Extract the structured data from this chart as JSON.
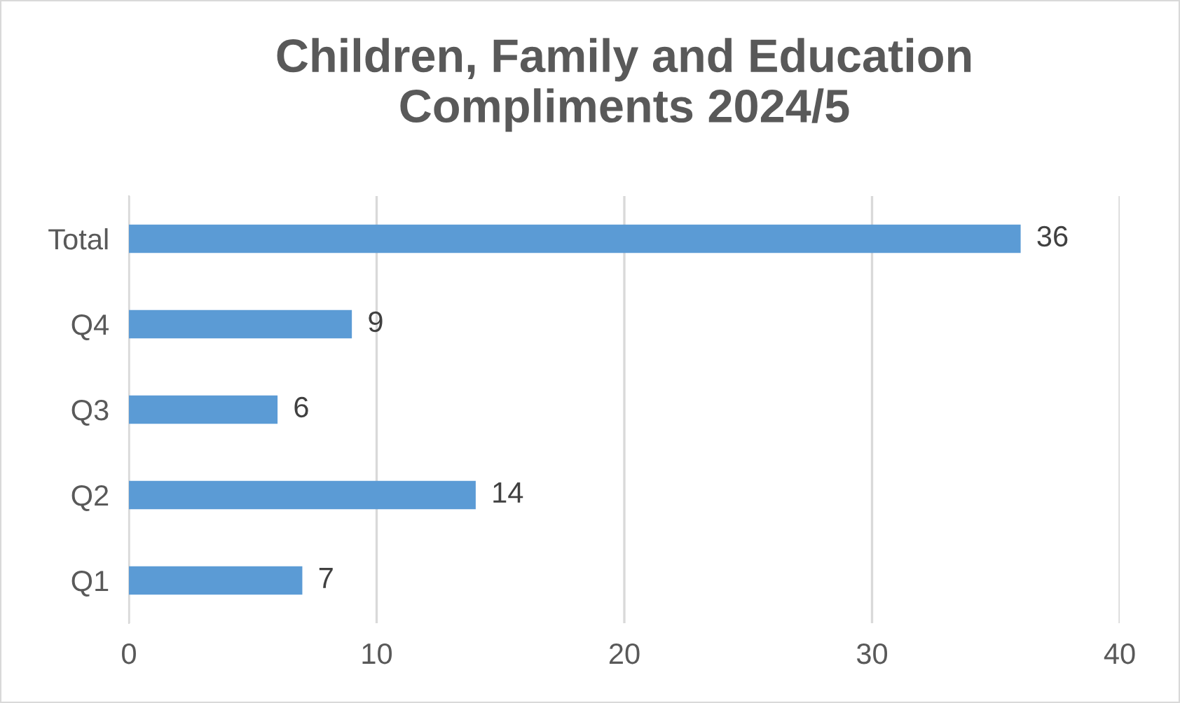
{
  "chart_data": {
    "type": "bar",
    "orientation": "horizontal",
    "title": "Children, Family and Education\nCompliments 2024/5",
    "categories": [
      "Total",
      "Q4",
      "Q3",
      "Q2",
      "Q1"
    ],
    "values": [
      36,
      9,
      6,
      14,
      7
    ],
    "color": "#5b9bd5",
    "xlim": [
      0,
      40
    ],
    "xticks": [
      0,
      10,
      20,
      30,
      40
    ],
    "grid": "x",
    "data_labels": true
  }
}
